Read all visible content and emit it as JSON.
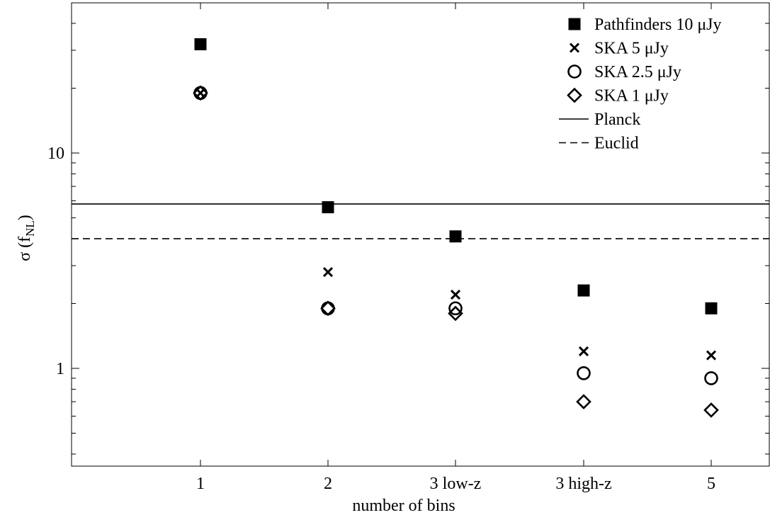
{
  "chart_data": {
    "type": "scatter",
    "title": "",
    "xlabel": "number of bins",
    "ylabel_main": "σ (f",
    "ylabel_sub": "NL",
    "ylabel_close": ")",
    "yscale": "log",
    "ylim": [
      0.4,
      40
    ],
    "yticks": [
      {
        "value": 1,
        "label": "1"
      },
      {
        "value": 10,
        "label": "10"
      }
    ],
    "categories": [
      "1",
      "2",
      "3 low-z",
      "3 high-z",
      "5"
    ],
    "grid": false,
    "legend_position": "top-right",
    "series": [
      {
        "name": "Pathfinders 10 μJy",
        "marker": "filled-square",
        "values": [
          32,
          5.6,
          4.1,
          2.3,
          1.9
        ]
      },
      {
        "name": "SKA 5 μJy",
        "marker": "cross",
        "values": [
          19,
          2.8,
          2.2,
          1.2,
          1.15
        ]
      },
      {
        "name": "SKA 2.5 μJy",
        "marker": "open-circle",
        "values": [
          19,
          1.9,
          1.9,
          0.95,
          0.9
        ]
      },
      {
        "name": "SKA 1 μJy",
        "marker": "open-diamond",
        "values": [
          19,
          1.9,
          1.8,
          0.7,
          0.64
        ]
      }
    ],
    "reference_lines": [
      {
        "name": "Planck",
        "style": "solid",
        "value": 5.8
      },
      {
        "name": "Euclid",
        "style": "dashed",
        "value": 4.0
      }
    ]
  }
}
